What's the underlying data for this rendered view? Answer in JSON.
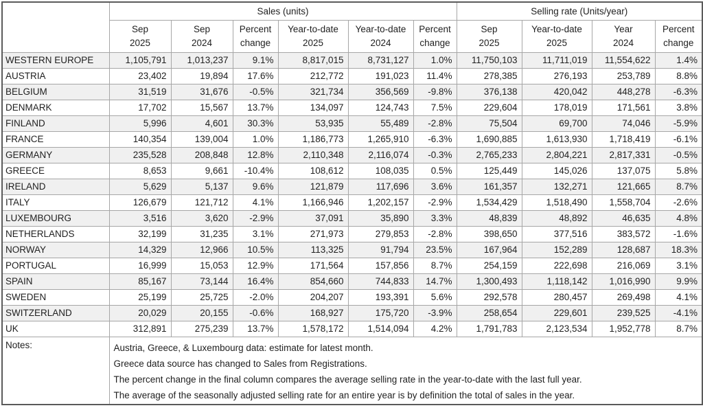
{
  "table": {
    "group_headers": {
      "corner": "",
      "sales": "Sales (units)",
      "selling_rate": "Selling rate (Units/year)"
    },
    "columns": [
      {
        "line1": "Sep",
        "line2": "2025"
      },
      {
        "line1": "Sep",
        "line2": "2024"
      },
      {
        "line1": "Percent",
        "line2": "change"
      },
      {
        "line1": "Year-to-date",
        "line2": "2025"
      },
      {
        "line1": "Year-to-date",
        "line2": "2024"
      },
      {
        "line1": "Percent",
        "line2": "change"
      },
      {
        "line1": "Sep",
        "line2": "2025"
      },
      {
        "line1": "Year-to-date",
        "line2": "2025"
      },
      {
        "line1": "Year",
        "line2": "2024"
      },
      {
        "line1": "Percent",
        "line2": "change"
      }
    ],
    "rows": [
      {
        "country": "WESTERN EUROPE",
        "values": [
          "1,105,791",
          "1,013,237",
          "9.1%",
          "8,817,015",
          "8,731,127",
          "1.0%",
          "11,750,103",
          "11,711,019",
          "11,554,622",
          "1.4%"
        ]
      },
      {
        "country": "AUSTRIA",
        "values": [
          "23,402",
          "19,894",
          "17.6%",
          "212,772",
          "191,023",
          "11.4%",
          "278,385",
          "276,193",
          "253,789",
          "8.8%"
        ]
      },
      {
        "country": "BELGIUM",
        "values": [
          "31,519",
          "31,676",
          "-0.5%",
          "321,734",
          "356,569",
          "-9.8%",
          "376,138",
          "420,042",
          "448,278",
          "-6.3%"
        ]
      },
      {
        "country": "DENMARK",
        "values": [
          "17,702",
          "15,567",
          "13.7%",
          "134,097",
          "124,743",
          "7.5%",
          "229,604",
          "178,019",
          "171,561",
          "3.8%"
        ]
      },
      {
        "country": "FINLAND",
        "values": [
          "5,996",
          "4,601",
          "30.3%",
          "53,935",
          "55,489",
          "-2.8%",
          "75,504",
          "69,700",
          "74,046",
          "-5.9%"
        ]
      },
      {
        "country": "FRANCE",
        "values": [
          "140,354",
          "139,004",
          "1.0%",
          "1,186,773",
          "1,265,910",
          "-6.3%",
          "1,690,885",
          "1,613,930",
          "1,718,419",
          "-6.1%"
        ]
      },
      {
        "country": "GERMANY",
        "values": [
          "235,528",
          "208,848",
          "12.8%",
          "2,110,348",
          "2,116,074",
          "-0.3%",
          "2,765,233",
          "2,804,221",
          "2,817,331",
          "-0.5%"
        ]
      },
      {
        "country": "GREECE",
        "values": [
          "8,653",
          "9,661",
          "-10.4%",
          "108,612",
          "108,035",
          "0.5%",
          "125,449",
          "145,026",
          "137,075",
          "5.8%"
        ]
      },
      {
        "country": "IRELAND",
        "values": [
          "5,629",
          "5,137",
          "9.6%",
          "121,879",
          "117,696",
          "3.6%",
          "161,357",
          "132,271",
          "121,665",
          "8.7%"
        ]
      },
      {
        "country": "ITALY",
        "values": [
          "126,679",
          "121,712",
          "4.1%",
          "1,166,946",
          "1,202,157",
          "-2.9%",
          "1,534,429",
          "1,518,490",
          "1,558,704",
          "-2.6%"
        ]
      },
      {
        "country": "LUXEMBOURG",
        "values": [
          "3,516",
          "3,620",
          "-2.9%",
          "37,091",
          "35,890",
          "3.3%",
          "48,839",
          "48,892",
          "46,635",
          "4.8%"
        ]
      },
      {
        "country": "NETHERLANDS",
        "values": [
          "32,199",
          "31,235",
          "3.1%",
          "271,973",
          "279,853",
          "-2.8%",
          "398,650",
          "377,516",
          "383,572",
          "-1.6%"
        ]
      },
      {
        "country": "NORWAY",
        "values": [
          "14,329",
          "12,966",
          "10.5%",
          "113,325",
          "91,794",
          "23.5%",
          "167,964",
          "152,289",
          "128,687",
          "18.3%"
        ]
      },
      {
        "country": "PORTUGAL",
        "values": [
          "16,999",
          "15,053",
          "12.9%",
          "171,564",
          "157,856",
          "8.7%",
          "254,159",
          "222,698",
          "216,069",
          "3.1%"
        ]
      },
      {
        "country": "SPAIN",
        "values": [
          "85,167",
          "73,144",
          "16.4%",
          "854,660",
          "744,833",
          "14.7%",
          "1,300,493",
          "1,118,142",
          "1,016,990",
          "9.9%"
        ]
      },
      {
        "country": "SWEDEN",
        "values": [
          "25,199",
          "25,725",
          "-2.0%",
          "204,207",
          "193,391",
          "5.6%",
          "292,578",
          "280,457",
          "269,498",
          "4.1%"
        ]
      },
      {
        "country": "SWITZERLAND",
        "values": [
          "20,029",
          "20,155",
          "-0.6%",
          "168,927",
          "175,720",
          "-3.9%",
          "258,654",
          "229,601",
          "239,525",
          "-4.1%"
        ]
      },
      {
        "country": "UK",
        "values": [
          "312,891",
          "275,239",
          "13.7%",
          "1,578,172",
          "1,514,094",
          "4.2%",
          "1,791,783",
          "2,123,534",
          "1,952,778",
          "8.7%"
        ]
      }
    ],
    "notes_label": "Notes:",
    "notes": [
      "Austria, Greece, & Luxembourg data: estimate for latest month.",
      "Greece data source has changed to Sales from Registrations.",
      "The percent change in the final column compares the average selling rate in the year-to-date with the last full year.",
      "The average of the seasonally adjusted selling rate for an entire year is by definition the total of sales in the year."
    ]
  },
  "colors": {
    "stripe": "#f0f0f0",
    "inner_border": "#a6a6a6",
    "outer_border": "#5a5a5a",
    "text": "#1f1f1f"
  }
}
